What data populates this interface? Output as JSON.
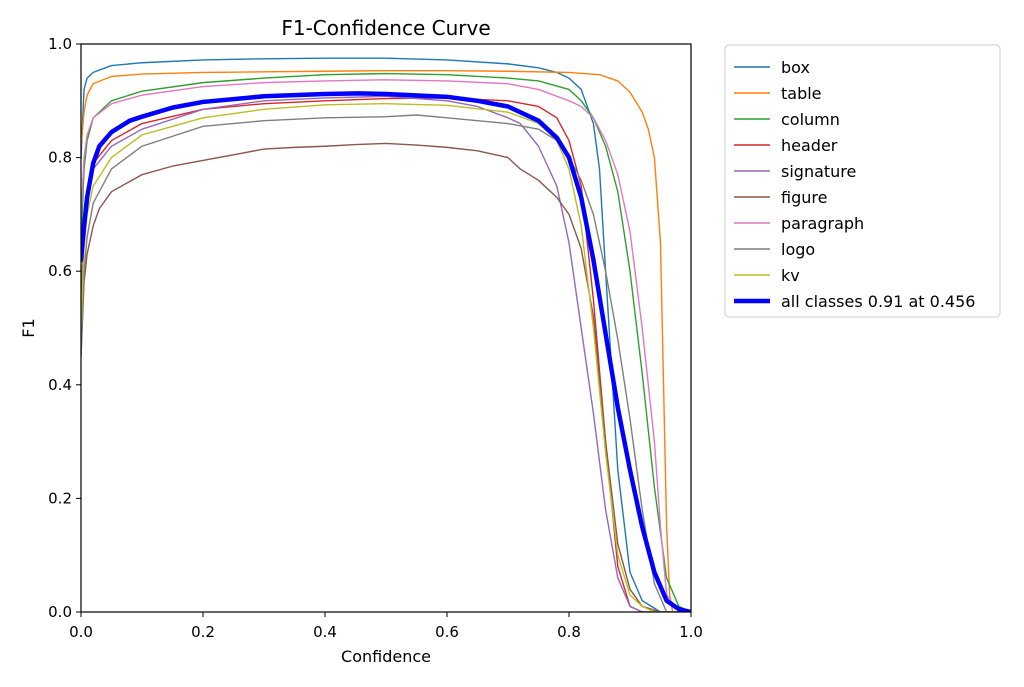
{
  "chart_data": {
    "type": "line",
    "title": "F1-Confidence Curve",
    "xlabel": "Confidence",
    "ylabel": "F1",
    "xlim": [
      0.0,
      1.0
    ],
    "ylim": [
      0.0,
      1.0
    ],
    "xticks": [
      "0.0",
      "0.2",
      "0.4",
      "0.6",
      "0.8",
      "1.0"
    ],
    "yticks": [
      "0.0",
      "0.2",
      "0.4",
      "0.6",
      "0.8",
      "1.0"
    ],
    "grid": false,
    "legend_position": "outside-right-top",
    "series": [
      {
        "name": "box",
        "color": "#1f77b4",
        "x": [
          0.0,
          0.005,
          0.01,
          0.02,
          0.05,
          0.1,
          0.2,
          0.3,
          0.4,
          0.5,
          0.6,
          0.7,
          0.75,
          0.78,
          0.8,
          0.82,
          0.84,
          0.85,
          0.86,
          0.88,
          0.9,
          0.92,
          0.95,
          1.0
        ],
        "y": [
          0.8,
          0.92,
          0.94,
          0.95,
          0.962,
          0.967,
          0.972,
          0.974,
          0.975,
          0.975,
          0.972,
          0.965,
          0.958,
          0.95,
          0.94,
          0.92,
          0.86,
          0.78,
          0.6,
          0.25,
          0.07,
          0.02,
          0.0,
          0.0
        ]
      },
      {
        "name": "table",
        "color": "#ff7f0e",
        "x": [
          0.0,
          0.005,
          0.01,
          0.02,
          0.05,
          0.1,
          0.2,
          0.3,
          0.4,
          0.5,
          0.6,
          0.7,
          0.8,
          0.85,
          0.88,
          0.9,
          0.92,
          0.93,
          0.94,
          0.95,
          0.955,
          0.96,
          0.965,
          0.97,
          1.0
        ],
        "y": [
          0.82,
          0.88,
          0.91,
          0.93,
          0.943,
          0.947,
          0.95,
          0.951,
          0.952,
          0.953,
          0.953,
          0.952,
          0.95,
          0.946,
          0.935,
          0.915,
          0.88,
          0.85,
          0.8,
          0.65,
          0.4,
          0.15,
          0.03,
          0.0,
          0.0
        ]
      },
      {
        "name": "column",
        "color": "#2ca02c",
        "x": [
          0.0,
          0.005,
          0.01,
          0.02,
          0.05,
          0.1,
          0.2,
          0.3,
          0.4,
          0.5,
          0.6,
          0.7,
          0.75,
          0.8,
          0.82,
          0.84,
          0.86,
          0.88,
          0.9,
          0.92,
          0.94,
          0.96,
          0.98,
          1.0
        ],
        "y": [
          0.65,
          0.78,
          0.83,
          0.87,
          0.9,
          0.917,
          0.932,
          0.94,
          0.946,
          0.948,
          0.946,
          0.94,
          0.935,
          0.92,
          0.9,
          0.87,
          0.82,
          0.74,
          0.6,
          0.42,
          0.22,
          0.06,
          0.01,
          0.0
        ]
      },
      {
        "name": "header",
        "color": "#d62728",
        "x": [
          0.0,
          0.005,
          0.01,
          0.02,
          0.05,
          0.1,
          0.2,
          0.3,
          0.4,
          0.5,
          0.6,
          0.7,
          0.75,
          0.78,
          0.8,
          0.82,
          0.84,
          0.86,
          0.88,
          0.9,
          0.92,
          0.94,
          1.0
        ],
        "y": [
          0.5,
          0.68,
          0.74,
          0.79,
          0.83,
          0.86,
          0.885,
          0.895,
          0.9,
          0.904,
          0.905,
          0.9,
          0.89,
          0.87,
          0.83,
          0.75,
          0.55,
          0.3,
          0.08,
          0.01,
          0.0,
          0.0,
          0.0
        ]
      },
      {
        "name": "signature",
        "color": "#9467bd",
        "x": [
          0.0,
          0.005,
          0.01,
          0.02,
          0.05,
          0.1,
          0.2,
          0.3,
          0.4,
          0.5,
          0.6,
          0.65,
          0.7,
          0.72,
          0.75,
          0.78,
          0.8,
          0.82,
          0.84,
          0.86,
          0.88,
          0.9,
          0.92,
          1.0
        ],
        "y": [
          0.55,
          0.68,
          0.74,
          0.78,
          0.82,
          0.85,
          0.885,
          0.9,
          0.905,
          0.908,
          0.9,
          0.89,
          0.87,
          0.86,
          0.82,
          0.75,
          0.65,
          0.5,
          0.35,
          0.18,
          0.06,
          0.01,
          0.0,
          0.0
        ]
      },
      {
        "name": "figure",
        "color": "#8c564b",
        "x": [
          0.0,
          0.005,
          0.01,
          0.02,
          0.03,
          0.05,
          0.1,
          0.15,
          0.2,
          0.25,
          0.3,
          0.35,
          0.4,
          0.45,
          0.5,
          0.55,
          0.6,
          0.65,
          0.7,
          0.72,
          0.75,
          0.78,
          0.8,
          0.82,
          0.84,
          0.86,
          0.88,
          0.9,
          0.92,
          0.95,
          1.0
        ],
        "y": [
          0.45,
          0.58,
          0.63,
          0.68,
          0.71,
          0.74,
          0.77,
          0.785,
          0.795,
          0.805,
          0.815,
          0.818,
          0.82,
          0.823,
          0.825,
          0.822,
          0.818,
          0.812,
          0.8,
          0.78,
          0.76,
          0.73,
          0.7,
          0.64,
          0.52,
          0.3,
          0.12,
          0.04,
          0.01,
          0.0,
          0.0
        ]
      },
      {
        "name": "paragraph",
        "color": "#e377c2",
        "x": [
          0.0,
          0.005,
          0.01,
          0.02,
          0.05,
          0.1,
          0.2,
          0.3,
          0.4,
          0.5,
          0.6,
          0.7,
          0.75,
          0.8,
          0.82,
          0.84,
          0.86,
          0.88,
          0.9,
          0.92,
          0.94,
          0.95,
          0.96,
          0.98,
          1.0
        ],
        "y": [
          0.7,
          0.8,
          0.84,
          0.87,
          0.895,
          0.91,
          0.925,
          0.932,
          0.935,
          0.937,
          0.935,
          0.93,
          0.92,
          0.9,
          0.89,
          0.87,
          0.83,
          0.77,
          0.67,
          0.5,
          0.3,
          0.15,
          0.03,
          0.0,
          0.0
        ]
      },
      {
        "name": "logo",
        "color": "#7f7f7f",
        "x": [
          0.0,
          0.005,
          0.01,
          0.02,
          0.05,
          0.1,
          0.2,
          0.3,
          0.4,
          0.5,
          0.55,
          0.6,
          0.65,
          0.7,
          0.75,
          0.78,
          0.8,
          0.82,
          0.84,
          0.86,
          0.88,
          0.9,
          0.92,
          0.94,
          0.96,
          1.0
        ],
        "y": [
          0.45,
          0.6,
          0.66,
          0.72,
          0.78,
          0.82,
          0.855,
          0.865,
          0.87,
          0.872,
          0.875,
          0.87,
          0.865,
          0.86,
          0.85,
          0.83,
          0.8,
          0.76,
          0.7,
          0.6,
          0.48,
          0.34,
          0.18,
          0.05,
          0.0,
          0.0
        ]
      },
      {
        "name": "kv",
        "color": "#bcbd22",
        "x": [
          0.0,
          0.005,
          0.01,
          0.02,
          0.05,
          0.1,
          0.2,
          0.3,
          0.4,
          0.5,
          0.6,
          0.7,
          0.75,
          0.78,
          0.8,
          0.82,
          0.84,
          0.86,
          0.88,
          0.9,
          0.92,
          0.94,
          1.0
        ],
        "y": [
          0.5,
          0.64,
          0.7,
          0.75,
          0.8,
          0.84,
          0.87,
          0.885,
          0.893,
          0.895,
          0.892,
          0.88,
          0.86,
          0.83,
          0.78,
          0.68,
          0.5,
          0.28,
          0.1,
          0.03,
          0.01,
          0.0,
          0.0
        ]
      },
      {
        "name": "all classes 0.91 at 0.456",
        "color": "#0000ff",
        "thick": true,
        "x": [
          0.0,
          0.005,
          0.01,
          0.02,
          0.03,
          0.05,
          0.08,
          0.1,
          0.15,
          0.2,
          0.3,
          0.4,
          0.456,
          0.5,
          0.6,
          0.65,
          0.7,
          0.75,
          0.78,
          0.8,
          0.82,
          0.84,
          0.86,
          0.88,
          0.9,
          0.92,
          0.94,
          0.96,
          0.98,
          1.0
        ],
        "y": [
          0.62,
          0.68,
          0.73,
          0.79,
          0.82,
          0.845,
          0.865,
          0.872,
          0.888,
          0.898,
          0.908,
          0.912,
          0.913,
          0.912,
          0.907,
          0.9,
          0.89,
          0.865,
          0.835,
          0.8,
          0.73,
          0.62,
          0.49,
          0.36,
          0.25,
          0.15,
          0.07,
          0.02,
          0.005,
          0.0
        ]
      }
    ]
  }
}
